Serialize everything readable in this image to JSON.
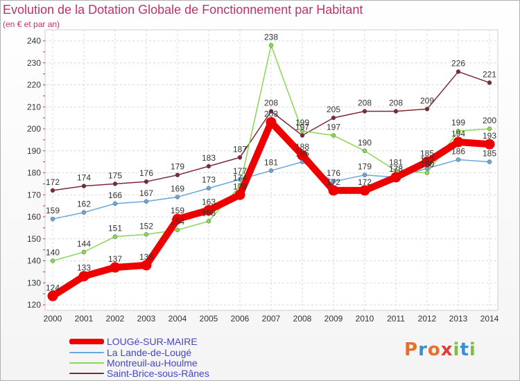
{
  "header": {
    "title": "Evolution de la Dotation Globale de Fonctionnement par Habitant",
    "subtitle": "(en € et par an)"
  },
  "logo": {
    "text": "Proxiti",
    "colors": [
      "#e8702a",
      "#3a8fd0",
      "#e8702a",
      "#e03c3c",
      "#7bc043",
      "#3a8fd0",
      "#7bc043"
    ]
  },
  "chart_data": {
    "type": "line",
    "title": "Evolution de la Dotation Globale de Fonctionnement par Habitant",
    "subtitle": "(en € et par an)",
    "xlabel": "",
    "ylabel": "",
    "x": [
      "2000",
      "2001",
      "2002",
      "2003",
      "2004",
      "2005",
      "2006",
      "2007",
      "2008",
      "2009",
      "2010",
      "2011",
      "2012",
      "2013",
      "2014"
    ],
    "ylim": [
      120,
      240
    ],
    "yticks": [
      120,
      130,
      140,
      150,
      160,
      170,
      180,
      190,
      200,
      210,
      220,
      230,
      240
    ],
    "grid": true,
    "legend_position": "bottom-left",
    "series": [
      {
        "name": "Saint-Brice-sous-Rânes",
        "color": "#7a2a35",
        "style": "thin",
        "values": [
          172,
          174,
          175,
          176,
          179,
          183,
          187,
          208,
          197,
          205,
          208,
          208,
          209,
          226,
          221
        ]
      },
      {
        "name": "Montreuil-au-Houlme",
        "color": "#88d850",
        "style": "thin",
        "values": [
          140,
          144,
          151,
          152,
          154,
          158,
          174,
          238,
          199,
          197,
          190,
          181,
          180,
          199,
          200
        ]
      },
      {
        "name": "La Lande-de-Lougé",
        "color": "#6aa6d8",
        "style": "thin",
        "values": [
          159,
          162,
          166,
          167,
          169,
          173,
          177,
          181,
          185,
          176,
          179,
          178,
          182,
          186,
          185
        ]
      },
      {
        "name": "LOUGé-SUR-MAIRE",
        "color": "#ee0000",
        "style": "thick",
        "values": [
          124,
          133,
          137,
          138,
          159,
          163,
          170,
          203,
          188,
          172,
          172,
          178,
          185,
          194,
          193
        ]
      }
    ],
    "legend": [
      "LOUGé-SUR-MAIRE",
      "La Lande-de-Lougé",
      "Montreuil-au-Houlme",
      "Saint-Brice-sous-Rânes"
    ]
  }
}
